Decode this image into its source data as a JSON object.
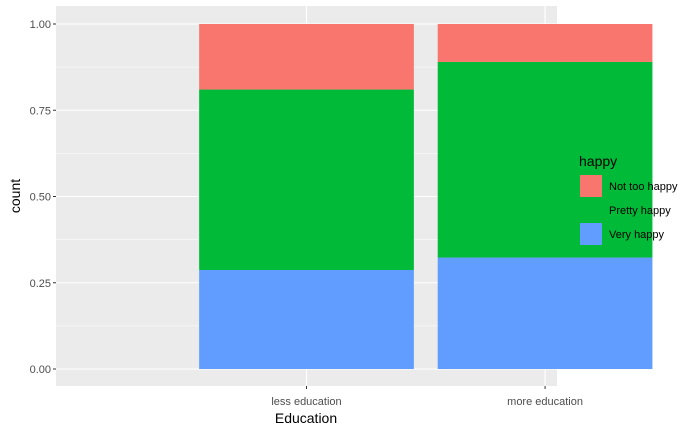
{
  "chart_data": {
    "type": "bar",
    "stacked": "fill",
    "title": "",
    "xlabel": "Education",
    "ylabel": "count",
    "ylim": [
      0,
      1
    ],
    "yticks": [
      {
        "value": 0,
        "label": "0.00"
      },
      {
        "value": 0.25,
        "label": "0.25"
      },
      {
        "value": 0.5,
        "label": "0.50"
      },
      {
        "value": 0.75,
        "label": "0.75"
      },
      {
        "value": 1,
        "label": "1.00"
      }
    ],
    "categories": [
      "less education",
      "more education"
    ],
    "series": [
      {
        "name": "Very happy",
        "color": "#619CFF",
        "values": [
          0.287,
          0.323
        ]
      },
      {
        "name": "Pretty happy",
        "color": "#00BA38",
        "values": [
          0.523,
          0.567
        ]
      },
      {
        "name": "Not too happy",
        "color": "#F8766D",
        "values": [
          0.19,
          0.11
        ]
      }
    ],
    "legend": {
      "title": "happy",
      "position": "right",
      "order": [
        "Not too happy",
        "Pretty happy",
        "Very happy"
      ]
    },
    "grid": true,
    "panel_background": "#EBEBEB"
  }
}
